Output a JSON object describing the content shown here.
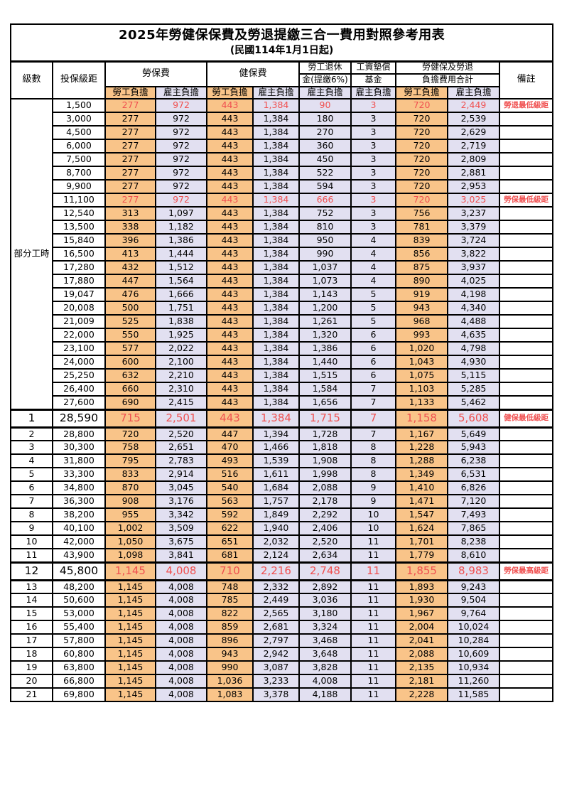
{
  "title": "2025年勞健保保費及勞退提繳三合一費用對照參考用表",
  "subtitle": "(民國114年1月1日起)",
  "colors": {
    "employee_bg": "#F9C489",
    "employer_bg": "#E2E0F1",
    "highlight_text": "#F05050",
    "border": "#000000"
  },
  "header": {
    "level": "級數",
    "bracket": "投保級距",
    "labor_insurance": "勞保費",
    "health_insurance": "健保費",
    "pension_line1": "勞工退休",
    "pension_line2": "金(提繳6%)",
    "wage_fund_line1": "工資墊償",
    "wage_fund_line2": "基金",
    "total_line1": "勞健保及勞退",
    "total_line2": "負擔費用合計",
    "remark": "備註",
    "employee": "勞工負擔",
    "employer": "雇主負擔"
  },
  "table": {
    "group_label": "部分工時",
    "group_rowspan": 23,
    "columns_widths": [
      59,
      74,
      71,
      72,
      65,
      65,
      73,
      63,
      73,
      73,
      75
    ]
  },
  "rows": [
    {
      "lv": "",
      "br": "1,500",
      "v": [
        "277",
        "972",
        "443",
        "1,384",
        "90",
        "3",
        "720",
        "2,449"
      ],
      "rm": "勞退最低級距",
      "red": true,
      "sp": false
    },
    {
      "lv": "",
      "br": "3,000",
      "v": [
        "277",
        "972",
        "443",
        "1,384",
        "180",
        "3",
        "720",
        "2,539"
      ],
      "rm": "",
      "red": false,
      "sp": false
    },
    {
      "lv": "",
      "br": "4,500",
      "v": [
        "277",
        "972",
        "443",
        "1,384",
        "270",
        "3",
        "720",
        "2,629"
      ],
      "rm": "",
      "red": false,
      "sp": false
    },
    {
      "lv": "",
      "br": "6,000",
      "v": [
        "277",
        "972",
        "443",
        "1,384",
        "360",
        "3",
        "720",
        "2,719"
      ],
      "rm": "",
      "red": false,
      "sp": false
    },
    {
      "lv": "",
      "br": "7,500",
      "v": [
        "277",
        "972",
        "443",
        "1,384",
        "450",
        "3",
        "720",
        "2,809"
      ],
      "rm": "",
      "red": false,
      "sp": false
    },
    {
      "lv": "",
      "br": "8,700",
      "v": [
        "277",
        "972",
        "443",
        "1,384",
        "522",
        "3",
        "720",
        "2,881"
      ],
      "rm": "",
      "red": false,
      "sp": false
    },
    {
      "lv": "",
      "br": "9,900",
      "v": [
        "277",
        "972",
        "443",
        "1,384",
        "594",
        "3",
        "720",
        "2,953"
      ],
      "rm": "",
      "red": false,
      "sp": false
    },
    {
      "lv": "",
      "br": "11,100",
      "v": [
        "277",
        "972",
        "443",
        "1,384",
        "666",
        "3",
        "720",
        "3,025"
      ],
      "rm": "勞保最低級距",
      "red": true,
      "sp": false
    },
    {
      "lv": "",
      "br": "12,540",
      "v": [
        "313",
        "1,097",
        "443",
        "1,384",
        "752",
        "3",
        "756",
        "3,237"
      ],
      "rm": "",
      "red": false,
      "sp": false
    },
    {
      "lv": "",
      "br": "13,500",
      "v": [
        "338",
        "1,182",
        "443",
        "1,384",
        "810",
        "3",
        "781",
        "3,379"
      ],
      "rm": "",
      "red": false,
      "sp": false
    },
    {
      "lv": "",
      "br": "15,840",
      "v": [
        "396",
        "1,386",
        "443",
        "1,384",
        "950",
        "4",
        "839",
        "3,724"
      ],
      "rm": "",
      "red": false,
      "sp": false
    },
    {
      "lv": "",
      "br": "16,500",
      "v": [
        "413",
        "1,444",
        "443",
        "1,384",
        "990",
        "4",
        "856",
        "3,822"
      ],
      "rm": "",
      "red": false,
      "sp": false
    },
    {
      "lv": "",
      "br": "17,280",
      "v": [
        "432",
        "1,512",
        "443",
        "1,384",
        "1,037",
        "4",
        "875",
        "3,937"
      ],
      "rm": "",
      "red": false,
      "sp": false
    },
    {
      "lv": "",
      "br": "17,880",
      "v": [
        "447",
        "1,564",
        "443",
        "1,384",
        "1,073",
        "4",
        "890",
        "4,025"
      ],
      "rm": "",
      "red": false,
      "sp": false
    },
    {
      "lv": "",
      "br": "19,047",
      "v": [
        "476",
        "1,666",
        "443",
        "1,384",
        "1,143",
        "5",
        "919",
        "4,198"
      ],
      "rm": "",
      "red": false,
      "sp": false
    },
    {
      "lv": "",
      "br": "20,008",
      "v": [
        "500",
        "1,751",
        "443",
        "1,384",
        "1,200",
        "5",
        "943",
        "4,340"
      ],
      "rm": "",
      "red": false,
      "sp": false
    },
    {
      "lv": "",
      "br": "21,009",
      "v": [
        "525",
        "1,838",
        "443",
        "1,384",
        "1,261",
        "5",
        "968",
        "4,488"
      ],
      "rm": "",
      "red": false,
      "sp": false
    },
    {
      "lv": "",
      "br": "22,000",
      "v": [
        "550",
        "1,925",
        "443",
        "1,384",
        "1,320",
        "6",
        "993",
        "4,635"
      ],
      "rm": "",
      "red": false,
      "sp": false
    },
    {
      "lv": "",
      "br": "23,100",
      "v": [
        "577",
        "2,022",
        "443",
        "1,384",
        "1,386",
        "6",
        "1,020",
        "4,798"
      ],
      "rm": "",
      "red": false,
      "sp": false
    },
    {
      "lv": "",
      "br": "24,000",
      "v": [
        "600",
        "2,100",
        "443",
        "1,384",
        "1,440",
        "6",
        "1,043",
        "4,930"
      ],
      "rm": "",
      "red": false,
      "sp": false
    },
    {
      "lv": "",
      "br": "25,250",
      "v": [
        "632",
        "2,210",
        "443",
        "1,384",
        "1,515",
        "6",
        "1,075",
        "5,115"
      ],
      "rm": "",
      "red": false,
      "sp": false
    },
    {
      "lv": "",
      "br": "26,400",
      "v": [
        "660",
        "2,310",
        "443",
        "1,384",
        "1,584",
        "7",
        "1,103",
        "5,285"
      ],
      "rm": "",
      "red": false,
      "sp": false
    },
    {
      "lv": "",
      "br": "27,600",
      "v": [
        "690",
        "2,415",
        "443",
        "1,384",
        "1,656",
        "7",
        "1,133",
        "5,462"
      ],
      "rm": "",
      "red": false,
      "sp": false
    },
    {
      "lv": "1",
      "br": "28,590",
      "v": [
        "715",
        "2,501",
        "443",
        "1,384",
        "1,715",
        "7",
        "1,158",
        "5,608"
      ],
      "rm": "健保最低級距",
      "red": true,
      "sp": true
    },
    {
      "lv": "2",
      "br": "28,800",
      "v": [
        "720",
        "2,520",
        "447",
        "1,394",
        "1,728",
        "7",
        "1,167",
        "5,649"
      ],
      "rm": "",
      "red": false,
      "sp": false
    },
    {
      "lv": "3",
      "br": "30,300",
      "v": [
        "758",
        "2,651",
        "470",
        "1,466",
        "1,818",
        "8",
        "1,228",
        "5,943"
      ],
      "rm": "",
      "red": false,
      "sp": false
    },
    {
      "lv": "4",
      "br": "31,800",
      "v": [
        "795",
        "2,783",
        "493",
        "1,539",
        "1,908",
        "8",
        "1,288",
        "6,238"
      ],
      "rm": "",
      "red": false,
      "sp": false
    },
    {
      "lv": "5",
      "br": "33,300",
      "v": [
        "833",
        "2,914",
        "516",
        "1,611",
        "1,998",
        "8",
        "1,349",
        "6,531"
      ],
      "rm": "",
      "red": false,
      "sp": false
    },
    {
      "lv": "6",
      "br": "34,800",
      "v": [
        "870",
        "3,045",
        "540",
        "1,684",
        "2,088",
        "9",
        "1,410",
        "6,826"
      ],
      "rm": "",
      "red": false,
      "sp": false
    },
    {
      "lv": "7",
      "br": "36,300",
      "v": [
        "908",
        "3,176",
        "563",
        "1,757",
        "2,178",
        "9",
        "1,471",
        "7,120"
      ],
      "rm": "",
      "red": false,
      "sp": false
    },
    {
      "lv": "8",
      "br": "38,200",
      "v": [
        "955",
        "3,342",
        "592",
        "1,849",
        "2,292",
        "10",
        "1,547",
        "7,493"
      ],
      "rm": "",
      "red": false,
      "sp": false
    },
    {
      "lv": "9",
      "br": "40,100",
      "v": [
        "1,002",
        "3,509",
        "622",
        "1,940",
        "2,406",
        "10",
        "1,624",
        "7,865"
      ],
      "rm": "",
      "red": false,
      "sp": false
    },
    {
      "lv": "10",
      "br": "42,000",
      "v": [
        "1,050",
        "3,675",
        "651",
        "2,032",
        "2,520",
        "11",
        "1,701",
        "8,238"
      ],
      "rm": "",
      "red": false,
      "sp": false
    },
    {
      "lv": "11",
      "br": "43,900",
      "v": [
        "1,098",
        "3,841",
        "681",
        "2,124",
        "2,634",
        "11",
        "1,779",
        "8,610"
      ],
      "rm": "",
      "red": false,
      "sp": false
    },
    {
      "lv": "12",
      "br": "45,800",
      "v": [
        "1,145",
        "4,008",
        "710",
        "2,216",
        "2,748",
        "11",
        "1,855",
        "8,983"
      ],
      "rm": "勞保最高級距",
      "red": true,
      "sp": true
    },
    {
      "lv": "13",
      "br": "48,200",
      "v": [
        "1,145",
        "4,008",
        "748",
        "2,332",
        "2,892",
        "11",
        "1,893",
        "9,243"
      ],
      "rm": "",
      "red": false,
      "sp": false
    },
    {
      "lv": "14",
      "br": "50,600",
      "v": [
        "1,145",
        "4,008",
        "785",
        "2,449",
        "3,036",
        "11",
        "1,930",
        "9,504"
      ],
      "rm": "",
      "red": false,
      "sp": false
    },
    {
      "lv": "15",
      "br": "53,000",
      "v": [
        "1,145",
        "4,008",
        "822",
        "2,565",
        "3,180",
        "11",
        "1,967",
        "9,764"
      ],
      "rm": "",
      "red": false,
      "sp": false
    },
    {
      "lv": "16",
      "br": "55,400",
      "v": [
        "1,145",
        "4,008",
        "859",
        "2,681",
        "3,324",
        "11",
        "2,004",
        "10,024"
      ],
      "rm": "",
      "red": false,
      "sp": false
    },
    {
      "lv": "17",
      "br": "57,800",
      "v": [
        "1,145",
        "4,008",
        "896",
        "2,797",
        "3,468",
        "11",
        "2,041",
        "10,284"
      ],
      "rm": "",
      "red": false,
      "sp": false
    },
    {
      "lv": "18",
      "br": "60,800",
      "v": [
        "1,145",
        "4,008",
        "943",
        "2,942",
        "3,648",
        "11",
        "2,088",
        "10,609"
      ],
      "rm": "",
      "red": false,
      "sp": false
    },
    {
      "lv": "19",
      "br": "63,800",
      "v": [
        "1,145",
        "4,008",
        "990",
        "3,087",
        "3,828",
        "11",
        "2,135",
        "10,934"
      ],
      "rm": "",
      "red": false,
      "sp": false
    },
    {
      "lv": "20",
      "br": "66,800",
      "v": [
        "1,145",
        "4,008",
        "1,036",
        "3,233",
        "4,008",
        "11",
        "2,181",
        "11,260"
      ],
      "rm": "",
      "red": false,
      "sp": false
    },
    {
      "lv": "21",
      "br": "69,800",
      "v": [
        "1,145",
        "4,008",
        "1,083",
        "3,378",
        "4,188",
        "11",
        "2,228",
        "11,585"
      ],
      "rm": "",
      "red": false,
      "sp": false
    }
  ]
}
